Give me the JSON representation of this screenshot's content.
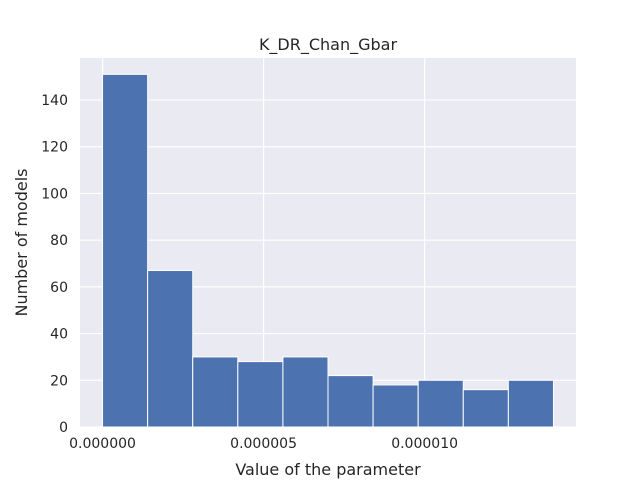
{
  "chart_data": {
    "type": "bar",
    "title": "K_DR_Chan_Gbar",
    "xlabel": "Value of the parameter",
    "ylabel": "Number of models",
    "bin_edges": [
      0.0,
      1.4e-06,
      2.8e-06,
      4.2e-06,
      5.6e-06,
      7e-06,
      8.4e-06,
      9.8e-06,
      1.12e-05,
      1.26e-05,
      1.4e-05
    ],
    "values": [
      151,
      67,
      30,
      28,
      30,
      22,
      18,
      20,
      16,
      20
    ],
    "xlim": [
      -7e-07,
      1.47e-05
    ],
    "ylim": [
      0,
      158
    ],
    "x_ticks": [
      0.0,
      5e-06,
      1e-05
    ],
    "x_tick_labels": [
      "0.000000",
      "0.000005",
      "0.000010"
    ],
    "y_ticks": [
      0,
      20,
      40,
      60,
      80,
      100,
      120,
      140
    ],
    "y_tick_labels": [
      "0",
      "20",
      "40",
      "60",
      "80",
      "100",
      "120",
      "140"
    ],
    "grid": true,
    "colors": {
      "bar": "#4c72b0",
      "bar_edge": "#ffffff",
      "plot_background": "#eaeaf2",
      "grid": "#ffffff",
      "text": "#262626"
    }
  }
}
